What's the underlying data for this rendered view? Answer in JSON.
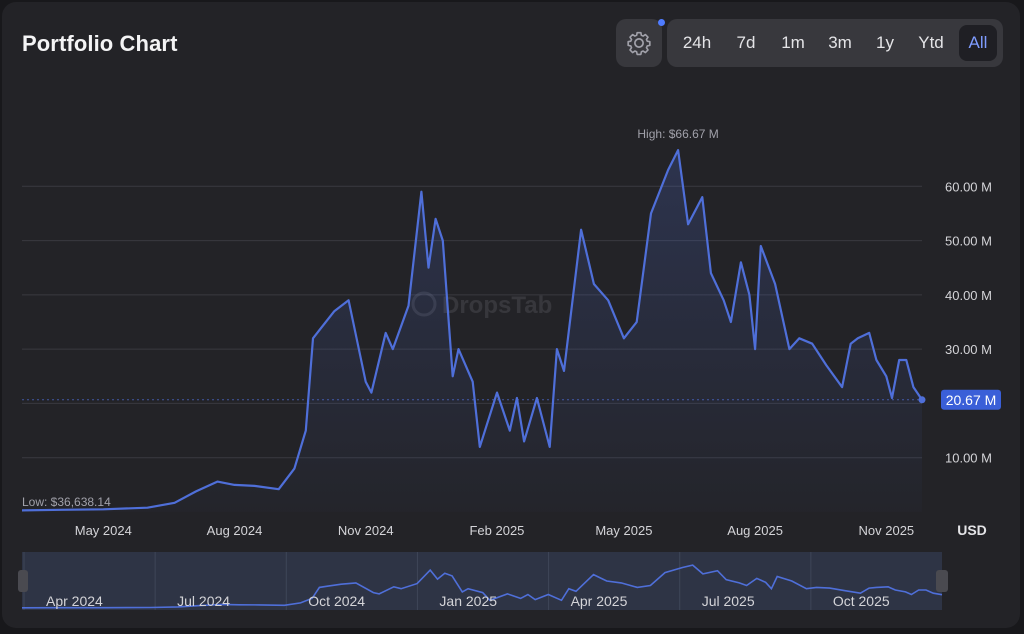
{
  "title": "Portfolio Chart",
  "settings_icon": "gear-icon",
  "ranges": [
    "24h",
    "7d",
    "1m",
    "3m",
    "1y",
    "Ytd",
    "All"
  ],
  "active_range": "All",
  "watermark": "DropsTab",
  "colors": {
    "accent": "#4f6fd9",
    "active_text": "#7f9cff",
    "badge": "#3a5fd8",
    "background": "#232327"
  },
  "chart_data": {
    "type": "line",
    "currency_label": "USD",
    "y_ticks": [
      10000000,
      20000000,
      30000000,
      40000000,
      50000000,
      60000000
    ],
    "y_tick_labels": [
      "10.00 M",
      "20.00 M",
      "30.00 M",
      "40.00 M",
      "50.00 M",
      "60.00 M"
    ],
    "ylim": [
      0,
      70000000
    ],
    "x_ticks": [
      "2024-05-01",
      "2024-08-01",
      "2024-11-01",
      "2025-02-01",
      "2025-05-01",
      "2025-08-01",
      "2025-11-01"
    ],
    "x_tick_labels": [
      "May 2024",
      "Aug 2024",
      "Nov 2024",
      "Feb 2025",
      "May 2025",
      "Aug 2025",
      "Nov 2025"
    ],
    "high_label": "High: $66.67 M",
    "low_label": "Low: $36,638.14",
    "current_value_label": "20.67 M",
    "grid": true,
    "series": [
      {
        "x": [
          "2024-03-05",
          "2024-04-01",
          "2024-05-01",
          "2024-06-01",
          "2024-06-20",
          "2024-07-05",
          "2024-07-20",
          "2024-08-01",
          "2024-08-15",
          "2024-09-01",
          "2024-09-12",
          "2024-09-20",
          "2024-09-25",
          "2024-10-01",
          "2024-10-10",
          "2024-10-20",
          "2024-11-01",
          "2024-11-05",
          "2024-11-15",
          "2024-11-20",
          "2024-12-01",
          "2024-12-10",
          "2024-12-15",
          "2024-12-20",
          "2024-12-25",
          "2025-01-01",
          "2025-01-05",
          "2025-01-15",
          "2025-01-20",
          "2025-02-01",
          "2025-02-10",
          "2025-02-15",
          "2025-02-20",
          "2025-03-01",
          "2025-03-10",
          "2025-03-15",
          "2025-03-20",
          "2025-04-01",
          "2025-04-10",
          "2025-04-20",
          "2025-05-01",
          "2025-05-10",
          "2025-05-20",
          "2025-06-01",
          "2025-06-08",
          "2025-06-15",
          "2025-06-25",
          "2025-07-01",
          "2025-07-10",
          "2025-07-15",
          "2025-07-22",
          "2025-07-28",
          "2025-08-01",
          "2025-08-05",
          "2025-08-15",
          "2025-08-25",
          "2025-09-01",
          "2025-09-10",
          "2025-09-20",
          "2025-10-01",
          "2025-10-07",
          "2025-10-12",
          "2025-10-20",
          "2025-10-25",
          "2025-11-01",
          "2025-11-05",
          "2025-11-10",
          "2025-11-15",
          "2025-11-20",
          "2025-11-26"
        ],
        "y": [
          300000,
          400000,
          500000,
          800000,
          1700000,
          3800000,
          5600000,
          5000000,
          4800000,
          4200000,
          8000000,
          15000000,
          32000000,
          34000000,
          37000000,
          39000000,
          24000000,
          22000000,
          33000000,
          30000000,
          38000000,
          59000000,
          45000000,
          54000000,
          50000000,
          25000000,
          30000000,
          24000000,
          12000000,
          22000000,
          15000000,
          21000000,
          13000000,
          21000000,
          12000000,
          30000000,
          26000000,
          52000000,
          42000000,
          39000000,
          32000000,
          35000000,
          55000000,
          63000000,
          66670000,
          53000000,
          58000000,
          44000000,
          39000000,
          35000000,
          46000000,
          40000000,
          30000000,
          49000000,
          42000000,
          30000000,
          32000000,
          31000000,
          27000000,
          23000000,
          31000000,
          32000000,
          33000000,
          28000000,
          25000000,
          21000000,
          28000000,
          28000000,
          23000000,
          20670000
        ]
      }
    ],
    "navigator": {
      "x_tick_labels": [
        "Apr 2024",
        "Jul 2024",
        "Oct 2024",
        "Jan 2025",
        "Apr 2025",
        "Jul 2025",
        "Oct 2025"
      ]
    }
  }
}
